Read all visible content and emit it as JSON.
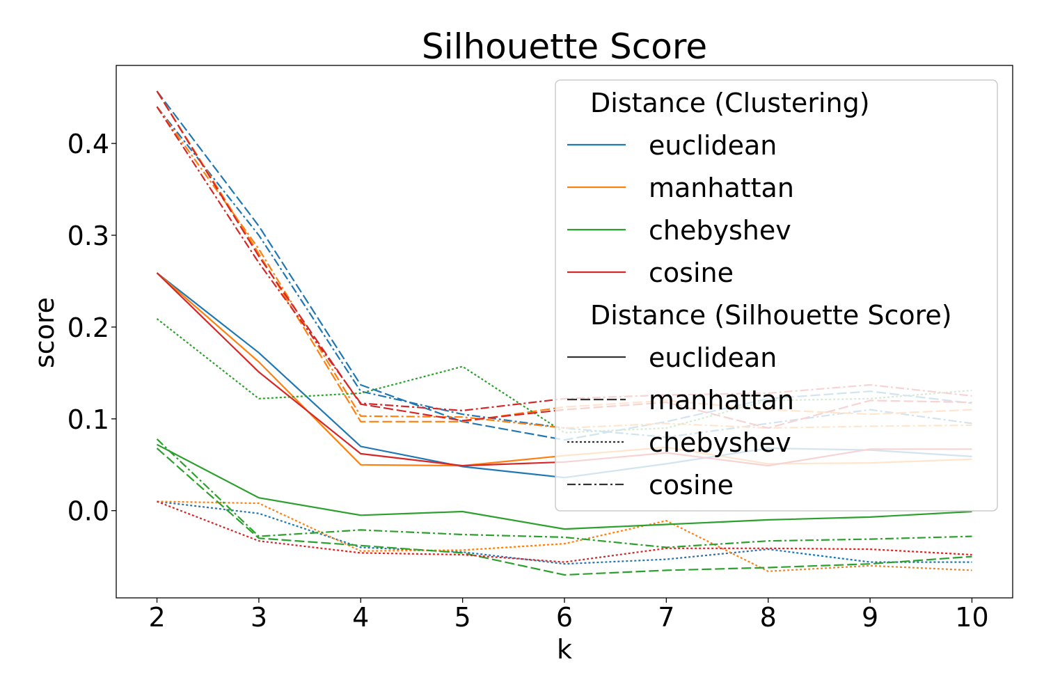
{
  "chart_data": {
    "type": "line",
    "title": "Silhouette Score",
    "xlabel": "k",
    "ylabel": "score",
    "x": [
      2,
      3,
      4,
      5,
      6,
      7,
      8,
      9,
      10
    ],
    "xlim": [
      1.6,
      10.4
    ],
    "ylim": [
      -0.095,
      0.485
    ],
    "xticks": [
      "2",
      "3",
      "4",
      "5",
      "6",
      "7",
      "8",
      "9",
      "10"
    ],
    "yticks": [
      "0.0",
      "0.1",
      "0.2",
      "0.3",
      "0.4"
    ],
    "yticks_values": [
      0.0,
      0.1,
      0.2,
      0.3,
      0.4
    ],
    "grid": false,
    "legend_position": "top-right",
    "legend": {
      "group1_title": "Distance (Clustering)",
      "group1": [
        {
          "label": "euclidean",
          "color": "#1f77b4"
        },
        {
          "label": "manhattan",
          "color": "#ff7f0e"
        },
        {
          "label": "chebyshev",
          "color": "#2ca02c"
        },
        {
          "label": "cosine",
          "color": "#d62728"
        }
      ],
      "group2_title": "Distance (Silhouette Score)",
      "group2": [
        {
          "label": "euclidean",
          "style": "solid"
        },
        {
          "label": "manhattan",
          "style": "dashed"
        },
        {
          "label": "chebyshev",
          "style": "dotted"
        },
        {
          "label": "cosine",
          "style": "dashdot"
        }
      ]
    },
    "series": [
      {
        "clustering": "euclidean",
        "score_metric": "euclidean",
        "values": [
          0.259,
          0.172,
          0.07,
          0.048,
          0.036,
          0.051,
          0.068,
          0.066,
          0.059
        ]
      },
      {
        "clustering": "euclidean",
        "score_metric": "manhattan",
        "values": [
          0.457,
          0.31,
          0.137,
          0.097,
          0.077,
          0.097,
          0.122,
          0.13,
          0.117
        ]
      },
      {
        "clustering": "euclidean",
        "score_metric": "chebyshev",
        "values": [
          0.01,
          -0.003,
          -0.04,
          -0.045,
          -0.058,
          -0.053,
          -0.042,
          -0.056,
          -0.056
        ]
      },
      {
        "clustering": "euclidean",
        "score_metric": "cosine",
        "values": [
          0.44,
          0.3,
          0.13,
          0.105,
          0.09,
          0.08,
          0.095,
          0.11,
          0.095
        ]
      },
      {
        "clustering": "manhattan",
        "score_metric": "euclidean",
        "values": [
          0.259,
          0.162,
          0.05,
          0.049,
          0.06,
          0.069,
          0.051,
          0.052,
          0.056
        ]
      },
      {
        "clustering": "manhattan",
        "score_metric": "manhattan",
        "values": [
          0.457,
          0.28,
          0.097,
          0.097,
          0.113,
          0.12,
          0.11,
          0.105,
          0.11
        ]
      },
      {
        "clustering": "manhattan",
        "score_metric": "chebyshev",
        "values": [
          0.01,
          0.008,
          -0.044,
          -0.043,
          -0.036,
          -0.011,
          -0.066,
          -0.06,
          -0.065
        ]
      },
      {
        "clustering": "manhattan",
        "score_metric": "cosine",
        "values": [
          0.44,
          0.285,
          0.103,
          0.102,
          0.09,
          0.095,
          0.09,
          0.092,
          0.093
        ]
      },
      {
        "clustering": "chebyshev",
        "score_metric": "euclidean",
        "values": [
          0.072,
          0.014,
          -0.005,
          -0.001,
          -0.02,
          -0.015,
          -0.01,
          -0.007,
          -0.001
        ]
      },
      {
        "clustering": "chebyshev",
        "score_metric": "manhattan",
        "values": [
          0.068,
          -0.03,
          -0.038,
          -0.046,
          -0.07,
          -0.065,
          -0.062,
          -0.058,
          -0.05
        ]
      },
      {
        "clustering": "chebyshev",
        "score_metric": "chebyshev",
        "values": [
          0.209,
          0.122,
          0.128,
          0.157,
          0.085,
          0.09,
          0.12,
          0.122,
          0.131
        ]
      },
      {
        "clustering": "chebyshev",
        "score_metric": "cosine",
        "values": [
          0.078,
          -0.028,
          -0.021,
          -0.026,
          -0.029,
          -0.04,
          -0.033,
          -0.031,
          -0.028
        ]
      },
      {
        "clustering": "cosine",
        "score_metric": "euclidean",
        "values": [
          0.259,
          0.151,
          0.062,
          0.049,
          0.053,
          0.063,
          0.049,
          0.067,
          0.067
        ]
      },
      {
        "clustering": "cosine",
        "score_metric": "manhattan",
        "values": [
          0.457,
          0.277,
          0.116,
          0.098,
          0.11,
          0.118,
          0.09,
          0.12,
          0.118
        ]
      },
      {
        "clustering": "cosine",
        "score_metric": "chebyshev",
        "values": [
          0.01,
          -0.033,
          -0.046,
          -0.048,
          -0.056,
          -0.041,
          -0.041,
          -0.042,
          -0.048
        ]
      },
      {
        "clustering": "cosine",
        "score_metric": "cosine",
        "values": [
          0.44,
          0.27,
          0.117,
          0.109,
          0.122,
          0.126,
          0.128,
          0.137,
          0.125
        ]
      }
    ]
  }
}
